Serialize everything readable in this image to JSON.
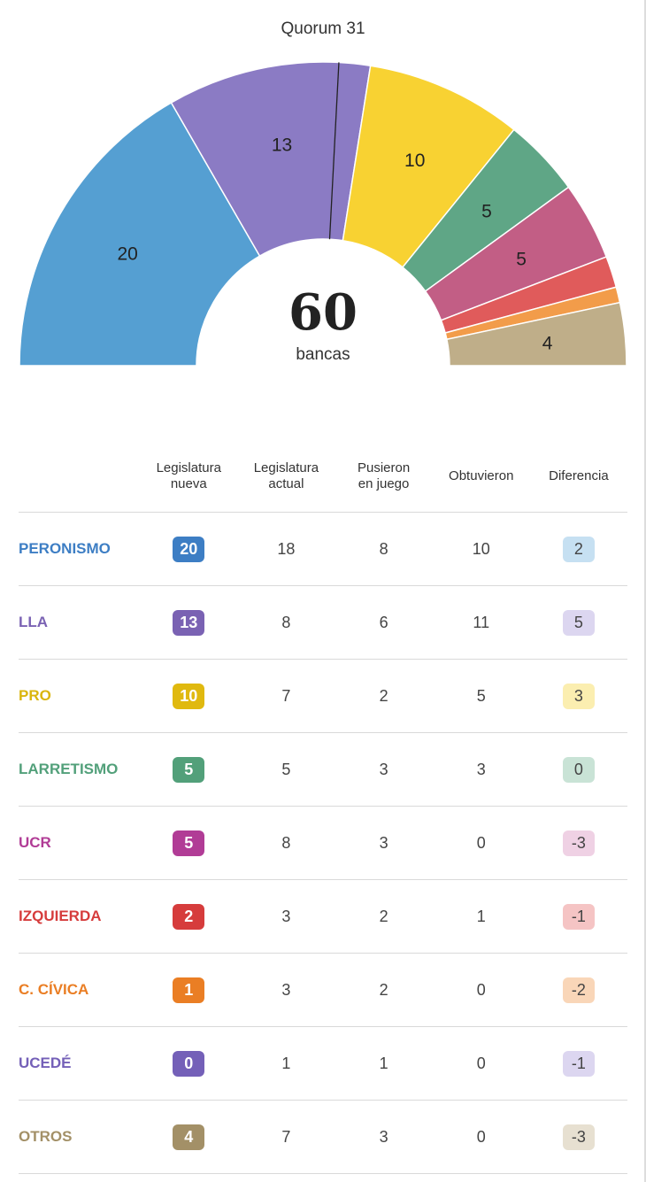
{
  "chart_data": {
    "type": "pie",
    "total": "60",
    "total_label": "bancas",
    "quorum_label": "Quorum 31",
    "slices": [
      {
        "name": "PERONISMO",
        "value": 20,
        "label": "20",
        "color": "#559fd2"
      },
      {
        "name": "LLA",
        "value": 13,
        "label": "13",
        "color": "#8b7bc4"
      },
      {
        "name": "PRO",
        "value": 10,
        "label": "10",
        "color": "#f8d232"
      },
      {
        "name": "LARRETISMO",
        "value": 5,
        "label": "5",
        "color": "#5fa686"
      },
      {
        "name": "UCR",
        "value": 5,
        "label": "5",
        "color": "#c25e85"
      },
      {
        "name": "IZQUIERDA",
        "value": 2,
        "label": "",
        "color": "#e05b5b"
      },
      {
        "name": "C. CÍVICA",
        "value": 1,
        "label": "",
        "color": "#f29c4a"
      },
      {
        "name": "UCEDÉ",
        "value": 0,
        "label": "",
        "color": "#7e6fc0"
      },
      {
        "name": "OTROS",
        "value": 4,
        "label": "4",
        "color": "#bfae89"
      }
    ],
    "quorum_value": 31
  },
  "table": {
    "headers": [
      {
        "line1": "",
        "line2": ""
      },
      {
        "line1": "Legislatura",
        "line2": "nueva"
      },
      {
        "line1": "Legislatura",
        "line2": "actual"
      },
      {
        "line1": "Pusieron",
        "line2": "en juego"
      },
      {
        "line1": "Obtuvieron",
        "line2": ""
      },
      {
        "line1": "Diferencia",
        "line2": ""
      }
    ],
    "rows": [
      {
        "party": "PERONISMO",
        "nueva": "20",
        "actual": "18",
        "juego": "8",
        "obtuvieron": "10",
        "diferencia": "2",
        "color": "#3d7ec4",
        "text_color": "#3d7ec4",
        "diff_bg": "#c6e0f2"
      },
      {
        "party": "LLA",
        "nueva": "13",
        "actual": "8",
        "juego": "6",
        "obtuvieron": "11",
        "diferencia": "5",
        "color": "#7a62b3",
        "text_color": "#7a62b3",
        "diff_bg": "#dcd6f0"
      },
      {
        "party": "PRO",
        "nueva": "10",
        "actual": "7",
        "juego": "2",
        "obtuvieron": "5",
        "diferencia": "3",
        "color": "#e0b90f",
        "text_color": "#dab50c",
        "diff_bg": "#fbeeb0"
      },
      {
        "party": "LARRETISMO",
        "nueva": "5",
        "actual": "5",
        "juego": "3",
        "obtuvieron": "3",
        "diferencia": "0",
        "color": "#52a07a",
        "text_color": "#52a07a",
        "diff_bg": "#c9e3d6"
      },
      {
        "party": "UCR",
        "nueva": "5",
        "actual": "8",
        "juego": "3",
        "obtuvieron": "0",
        "diferencia": "-3",
        "color": "#b13c96",
        "text_color": "#b13c96",
        "diff_bg": "#efd1e4"
      },
      {
        "party": "IZQUIERDA",
        "nueva": "2",
        "actual": "3",
        "juego": "2",
        "obtuvieron": "1",
        "diferencia": "-1",
        "color": "#d63c3c",
        "text_color": "#d63c3c",
        "diff_bg": "#f5c4c4"
      },
      {
        "party": "C. CÍVICA",
        "nueva": "1",
        "actual": "3",
        "juego": "2",
        "obtuvieron": "0",
        "diferencia": "-2",
        "color": "#ea7e24",
        "text_color": "#ea7e24",
        "diff_bg": "#f9d6b8"
      },
      {
        "party": "UCEDÉ",
        "nueva": "0",
        "actual": "1",
        "juego": "1",
        "obtuvieron": "0",
        "diferencia": "-1",
        "color": "#7460b8",
        "text_color": "#7460b8",
        "diff_bg": "#dcd6f0"
      },
      {
        "party": "OTROS",
        "nueva": "4",
        "actual": "7",
        "juego": "3",
        "obtuvieron": "0",
        "diferencia": "-3",
        "color": "#a39067",
        "text_color": "#a39067",
        "diff_bg": "#e7e0d1"
      }
    ]
  }
}
